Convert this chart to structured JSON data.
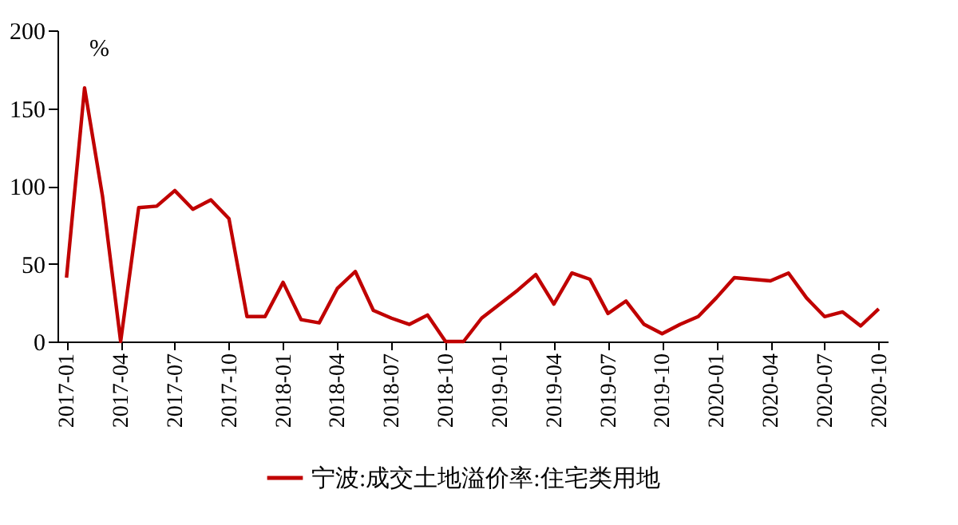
{
  "chart_data": {
    "type": "line",
    "ylabel": "%",
    "categories": [
      "2017-01",
      null,
      null,
      "2017-04",
      null,
      null,
      "2017-07",
      null,
      null,
      "2017-10",
      null,
      null,
      "2018-01",
      null,
      null,
      "2018-04",
      null,
      null,
      "2018-07",
      null,
      null,
      "2018-10",
      null,
      null,
      "2019-01",
      null,
      null,
      "2019-04",
      null,
      null,
      "2019-07",
      null,
      null,
      "2019-10",
      null,
      null,
      "2020-01",
      null,
      null,
      "2020-04",
      null,
      null,
      "2020-07",
      null,
      null,
      "2020-10"
    ],
    "series": [
      {
        "name": "宁波:成交土地溢价率:住宅类用地",
        "color": "#c00000",
        "values": [
          41,
          163,
          93,
          0,
          86,
          87,
          97,
          85,
          91,
          79,
          16,
          16,
          38,
          14,
          12,
          34,
          45,
          20,
          15,
          11,
          17,
          0,
          0,
          15,
          24,
          33,
          43,
          24,
          44,
          40,
          18,
          26,
          11,
          5,
          11,
          16,
          28,
          41,
          40,
          39,
          44,
          28,
          16,
          19,
          10,
          21
        ]
      }
    ],
    "ylim": [
      0,
      200
    ],
    "yticks": [
      0,
      50,
      100,
      150,
      200
    ],
    "grid": false,
    "legend": "bottom",
    "marker": "none",
    "line_style": "solid"
  }
}
